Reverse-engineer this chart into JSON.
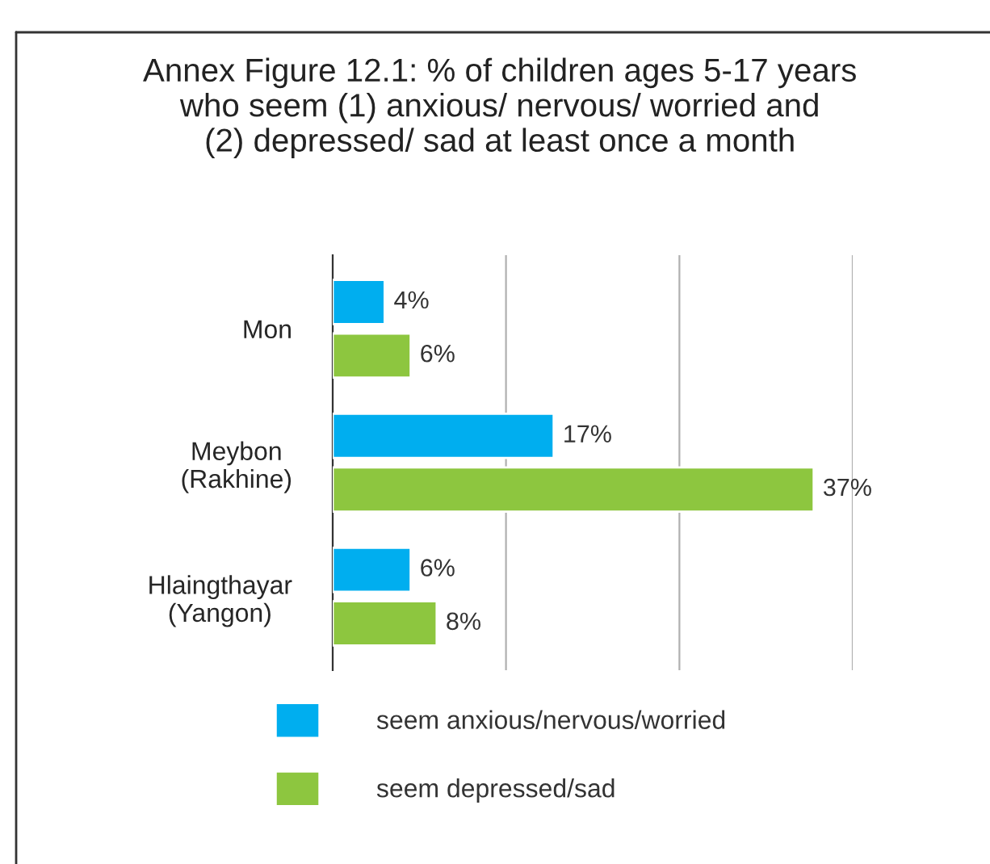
{
  "chart_data": {
    "type": "bar",
    "orientation": "horizontal",
    "title": "Annex Figure 12.1: % of children ages 5-17 years\nwho seem (1) anxious/ nervous/ worried and\n(2) depressed/ sad at least once a month",
    "categories": [
      "Mon",
      "Meybon\n(Rakhine)",
      "Hlaingthayar\n(Yangon)"
    ],
    "series": [
      {
        "name": "seem anxious/nervous/worried",
        "color": "#00aeef",
        "values": [
          4,
          17,
          6
        ],
        "value_labels": [
          "4%",
          "17%",
          "6%"
        ]
      },
      {
        "name": "seem depressed/sad",
        "color": "#8dc63f",
        "values": [
          6,
          37,
          8
        ],
        "value_labels": [
          "6%",
          "37%",
          "8%"
        ]
      }
    ],
    "xlim": [
      0,
      40
    ],
    "xticks": [
      {
        "value": 0,
        "label": null
      },
      {
        "value": 13.33,
        "label": null
      },
      {
        "value": 26.67,
        "label": null
      },
      {
        "value": 40,
        "label": null
      }
    ],
    "grid": "x",
    "legend": "bottom",
    "tick_labels": "y"
  }
}
